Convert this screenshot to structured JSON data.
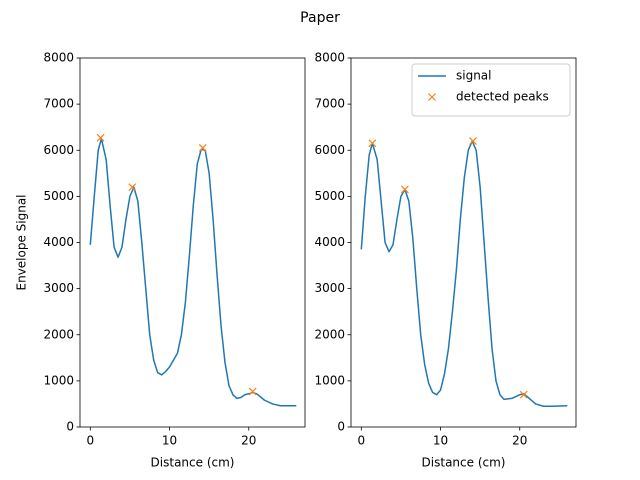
{
  "title": "Paper",
  "chart_data": [
    {
      "type": "line",
      "xlabel": "Distance (cm)",
      "ylabel": "Envelope Signal",
      "xlim": [
        -1.3,
        27.1
      ],
      "ylim": [
        0,
        8000
      ],
      "xticks": [
        0,
        10,
        20
      ],
      "yticks": [
        0,
        1000,
        2000,
        3000,
        4000,
        5000,
        6000,
        7000,
        8000
      ],
      "grid": false,
      "series": [
        {
          "color": "#1f77b4",
          "marker": "none",
          "x": [
            0,
            0.5,
            1,
            1.4,
            2,
            2.5,
            3,
            3.5,
            4,
            4.5,
            5,
            5.5,
            6,
            6.5,
            7,
            7.5,
            8,
            8.5,
            9,
            9.5,
            10,
            11,
            11.5,
            12,
            12.5,
            13,
            13.5,
            14,
            14.5,
            15,
            15.5,
            16,
            16.5,
            17,
            17.5,
            18,
            18.5,
            19,
            19.5,
            20,
            20.5,
            21,
            22,
            23,
            24,
            25,
            26
          ],
          "values": [
            3950,
            5000,
            6000,
            6250,
            5800,
            4800,
            3900,
            3680,
            3900,
            4500,
            5000,
            5200,
            4900,
            4000,
            3000,
            2000,
            1450,
            1180,
            1130,
            1200,
            1300,
            1600,
            2000,
            2700,
            3700,
            4800,
            5700,
            6020,
            6000,
            5500,
            4500,
            3300,
            2200,
            1400,
            900,
            700,
            620,
            640,
            700,
            720,
            750,
            720,
            580,
            500,
            460,
            460,
            460
          ]
        },
        {
          "color": "#ff7f0e",
          "marker": "x",
          "x": [
            1.3,
            5.3,
            14.2,
            20.5
          ],
          "values": [
            6270,
            5200,
            6050,
            770
          ]
        }
      ]
    },
    {
      "type": "line",
      "xlabel": "Distance (cm)",
      "xlim": [
        -1.3,
        27.1
      ],
      "ylim": [
        0,
        8000
      ],
      "xticks": [
        0,
        10,
        20
      ],
      "yticks": [
        0,
        1000,
        2000,
        3000,
        4000,
        5000,
        6000,
        7000,
        8000
      ],
      "grid": false,
      "legend": "upper right",
      "series": [
        {
          "name": "signal",
          "color": "#1f77b4",
          "marker": "none",
          "x": [
            0,
            0.5,
            1,
            1.4,
            2,
            2.5,
            3,
            3.5,
            4,
            4.5,
            5,
            5.5,
            6,
            6.5,
            7,
            7.5,
            8,
            8.5,
            9,
            9.5,
            10,
            10.5,
            11,
            11.5,
            12,
            12.5,
            13,
            13.5,
            14,
            14.5,
            15,
            15.5,
            16,
            16.5,
            17,
            17.5,
            18,
            19,
            20,
            20.5,
            21,
            22,
            23,
            24,
            26
          ],
          "values": [
            3850,
            5000,
            5900,
            6150,
            5800,
            4900,
            4000,
            3800,
            3950,
            4500,
            5000,
            5150,
            4900,
            4100,
            3000,
            2000,
            1350,
            950,
            750,
            700,
            800,
            1150,
            1700,
            2500,
            3400,
            4500,
            5400,
            6000,
            6200,
            6000,
            5200,
            4000,
            2800,
            1700,
            1000,
            700,
            600,
            620,
            700,
            720,
            650,
            500,
            450,
            450,
            460
          ]
        },
        {
          "name": "detected peaks",
          "color": "#ff7f0e",
          "marker": "x",
          "x": [
            1.4,
            5.5,
            14.1,
            20.5
          ],
          "values": [
            6150,
            5150,
            6200,
            700
          ]
        }
      ]
    }
  ]
}
